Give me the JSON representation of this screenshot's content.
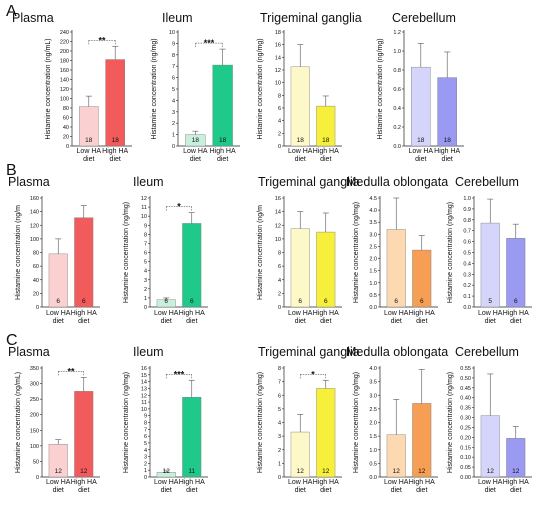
{
  "figure_labels": [
    "A",
    "B",
    "C"
  ],
  "colors": {
    "Plasma": [
      "#fbd0d0",
      "#f25b5b"
    ],
    "Ileum": [
      "#c9f0dd",
      "#1ec989"
    ],
    "Trigeminal ganglia": [
      "#fdf8c8",
      "#f7f03a"
    ],
    "Medulla oblongata": [
      "#fcd9b0",
      "#f79e55"
    ],
    "Cerebellum": [
      "#d5d5fb",
      "#9a9af2"
    ]
  },
  "chart_data": [
    {
      "panel": "A",
      "type": "bar",
      "title": "Plasma",
      "ylabel": "Histamine concentration (ng/mL)",
      "categories": [
        "Low HA diet",
        "High HA diet"
      ],
      "values": [
        83,
        182
      ],
      "errors": [
        22,
        28
      ],
      "n": [
        "18",
        "18"
      ],
      "ylim": [
        0,
        240
      ],
      "ticks": [
        0,
        20,
        40,
        60,
        80,
        100,
        120,
        140,
        160,
        180,
        200,
        220,
        240
      ],
      "sig": "**"
    },
    {
      "panel": "A",
      "type": "bar",
      "title": "Ileum",
      "ylabel": "Histamine concentration (ng/mg)",
      "categories": [
        "Low HA diet",
        "High HA diet"
      ],
      "values": [
        1.0,
        7.1
      ],
      "errors": [
        0.3,
        1.4
      ],
      "n": [
        "18",
        "18"
      ],
      "ylim": [
        0,
        10
      ],
      "ticks": [
        0,
        1,
        2,
        3,
        4,
        5,
        6,
        7,
        8,
        9,
        10
      ],
      "sig": "***"
    },
    {
      "panel": "A",
      "type": "bar",
      "title": "Trigeminal ganglia",
      "ylabel": "Histamine concentration (ng/mg)",
      "categories": [
        "Low HA diet",
        "High HA diet"
      ],
      "values": [
        12.5,
        6.3
      ],
      "errors": [
        3.5,
        1.6
      ],
      "n": [
        "18",
        "18"
      ],
      "ylim": [
        0,
        18
      ],
      "ticks": [
        0,
        2,
        4,
        6,
        8,
        10,
        12,
        14,
        16,
        18
      ],
      "sig": ""
    },
    {
      "panel": "A",
      "type": "bar",
      "title": "Cerebellum",
      "ylabel": "Histamine concentration (ng/mg)",
      "categories": [
        "Low HA diet",
        "High HA diet"
      ],
      "values": [
        0.83,
        0.72
      ],
      "errors": [
        0.25,
        0.27
      ],
      "n": [
        "18",
        "18"
      ],
      "ylim": [
        0,
        1.2
      ],
      "ticks": [
        0.0,
        0.2,
        0.4,
        0.6,
        0.8,
        1.0,
        1.2
      ],
      "sig": ""
    },
    {
      "panel": "B",
      "type": "bar",
      "title": "Plasma",
      "ylabel": "Histamine concentration (ng/m",
      "categories": [
        "Low HA diet",
        "High HA diet"
      ],
      "values": [
        78,
        131
      ],
      "errors": [
        22,
        18
      ],
      "n": [
        "6",
        "6"
      ],
      "ylim": [
        0,
        160
      ],
      "ticks": [
        0,
        20,
        40,
        60,
        80,
        100,
        120,
        140,
        160
      ],
      "sig": ""
    },
    {
      "panel": "B",
      "type": "bar",
      "title": "Ileum",
      "ylabel": "Histamine concentration (ng/mg)",
      "categories": [
        "Low HA diet",
        "High HA diet"
      ],
      "values": [
        0.8,
        9.2
      ],
      "errors": [
        0.2,
        1.2
      ],
      "n": [
        "6",
        "6"
      ],
      "ylim": [
        0,
        12
      ],
      "ticks": [
        0,
        1,
        2,
        3,
        4,
        5,
        6,
        7,
        8,
        9,
        10,
        11,
        12
      ],
      "sig": "*"
    },
    {
      "panel": "B",
      "type": "bar",
      "title": "Trigeminal ganglia",
      "ylabel": "Histamine concentration (ng/m",
      "categories": [
        "Low HA diet",
        "High HA diet"
      ],
      "values": [
        11.5,
        11.0
      ],
      "errors": [
        2.5,
        2.8
      ],
      "n": [
        "6",
        "6"
      ],
      "ylim": [
        0,
        16
      ],
      "ticks": [
        0,
        2,
        4,
        6,
        8,
        10,
        12,
        14,
        16
      ],
      "sig": ""
    },
    {
      "panel": "B",
      "type": "bar",
      "title": "Medulla oblongata",
      "ylabel": "Histamine concentration (ng/mg)",
      "categories": [
        "Low HA diet",
        "High HA diet"
      ],
      "values": [
        3.2,
        2.35
      ],
      "errors": [
        1.3,
        0.6
      ],
      "n": [
        "6",
        "6"
      ],
      "ylim": [
        0,
        4.5
      ],
      "ticks": [
        0.0,
        0.5,
        1.0,
        1.5,
        2.0,
        2.5,
        3.0,
        3.5,
        4.0,
        4.5
      ],
      "sig": ""
    },
    {
      "panel": "B",
      "type": "bar",
      "title": "Cerebellum",
      "ylabel": "Histamine concentration (ng/mg)",
      "categories": [
        "Low HA diet",
        "High HA diet"
      ],
      "values": [
        0.77,
        0.63
      ],
      "errors": [
        0.22,
        0.13
      ],
      "n": [
        "5",
        "6"
      ],
      "ylim": [
        0,
        1.0
      ],
      "ticks": [
        0.0,
        0.1,
        0.2,
        0.3,
        0.4,
        0.5,
        0.6,
        0.7,
        0.8,
        0.9,
        1.0
      ],
      "sig": ""
    },
    {
      "panel": "C",
      "type": "bar",
      "title": "Plasma",
      "ylabel": "Histamine concentration (ng/mL)",
      "categories": [
        "Low HA diet",
        "High HA diet"
      ],
      "values": [
        105,
        275
      ],
      "errors": [
        15,
        45
      ],
      "n": [
        "12",
        "12"
      ],
      "ylim": [
        0,
        350
      ],
      "ticks": [
        0,
        50,
        100,
        150,
        200,
        250,
        300,
        350
      ],
      "sig": "**"
    },
    {
      "panel": "C",
      "type": "bar",
      "title": "Ileum",
      "ylabel": "Histamine concentration (ng/mg)",
      "categories": [
        "Low HA diet",
        "High HA diet"
      ],
      "values": [
        0.7,
        11.7
      ],
      "errors": [
        0.2,
        2.5
      ],
      "n": [
        "12",
        "11"
      ],
      "ylim": [
        0,
        16
      ],
      "ticks": [
        0,
        1,
        2,
        3,
        4,
        5,
        6,
        7,
        8,
        9,
        10,
        11,
        12,
        13,
        14,
        15,
        16
      ],
      "sig": "***"
    },
    {
      "panel": "C",
      "type": "bar",
      "title": "Trigeminal ganglia",
      "ylabel": "Histamine concentration (ng/mg)",
      "categories": [
        "Low HA diet",
        "High HA diet"
      ],
      "values": [
        3.3,
        6.5
      ],
      "errors": [
        1.3,
        0.6
      ],
      "n": [
        "12",
        "12"
      ],
      "ylim": [
        0,
        8
      ],
      "ticks": [
        0,
        1,
        2,
        3,
        4,
        5,
        6,
        7,
        8
      ],
      "sig": "*"
    },
    {
      "panel": "C",
      "type": "bar",
      "title": "Medulla oblongata",
      "ylabel": "Histamine concentration (ng/mg)",
      "categories": [
        "Low HA diet",
        "High HA diet"
      ],
      "values": [
        1.55,
        2.7
      ],
      "errors": [
        1.3,
        1.25
      ],
      "n": [
        "12",
        "12"
      ],
      "ylim": [
        0,
        4.0
      ],
      "ticks": [
        0.0,
        0.5,
        1.0,
        1.5,
        2.0,
        2.5,
        3.0,
        3.5,
        4.0
      ],
      "sig": ""
    },
    {
      "panel": "C",
      "type": "bar",
      "title": "Cerebellum",
      "ylabel": "Histamine concentration (ng/mg)",
      "categories": [
        "Low HA diet",
        "High HA diet"
      ],
      "values": [
        0.31,
        0.195
      ],
      "errors": [
        0.21,
        0.06
      ],
      "n": [
        "12",
        "12"
      ],
      "ylim": [
        0,
        0.55
      ],
      "ticks": [
        0.0,
        0.05,
        0.1,
        0.15,
        0.2,
        0.25,
        0.3,
        0.35,
        0.4,
        0.45,
        0.5,
        0.55
      ],
      "sig": ""
    }
  ]
}
